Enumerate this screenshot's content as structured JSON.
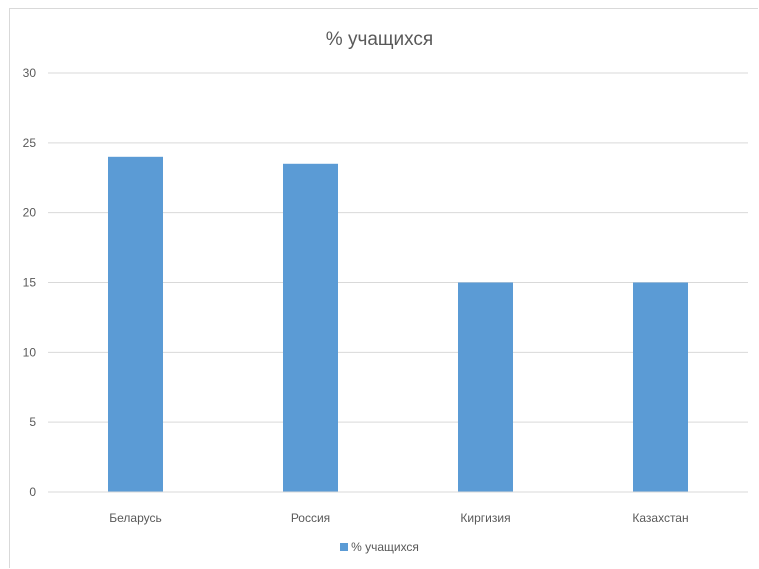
{
  "chart_data": {
    "type": "bar",
    "title": "% учащихся",
    "categories": [
      "Беларусь",
      "Россия",
      "Киргизия",
      "Казахстан"
    ],
    "series": [
      {
        "name": "% учащихся",
        "values": [
          24,
          23.5,
          15,
          15
        ],
        "color": "#5b9bd5"
      }
    ],
    "ylim": [
      0,
      30
    ],
    "yticks": [
      0,
      5,
      10,
      15,
      20,
      25,
      30
    ],
    "grid": true,
    "gridColor": "#d9d9d9",
    "textColor": "#595959",
    "legend_position": "bottom"
  }
}
